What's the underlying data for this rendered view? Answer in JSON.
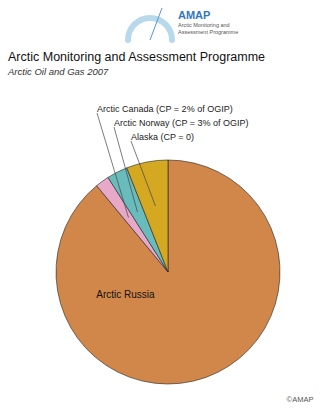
{
  "chart_data": {
    "type": "pie",
    "title": "Arctic Monitoring and Assessment Programme",
    "subtitle": "Arctic Oil and Gas 2007",
    "categories": [
      "Arctic Russia",
      "Arctic Canada (CP = 2% of OGIP)",
      "Arctic Norway (CP = 3% of OGIP)",
      "Alaska (CP = 0)"
    ],
    "values": [
      89,
      2,
      3,
      6
    ],
    "colors": [
      "#D2874A",
      "#E8A8C8",
      "#6ABCBC",
      "#D4A820"
    ],
    "annotations": [
      "AMAP",
      "Arctic Monitoring and",
      "Assessment Programme",
      "©AMAP"
    ]
  }
}
